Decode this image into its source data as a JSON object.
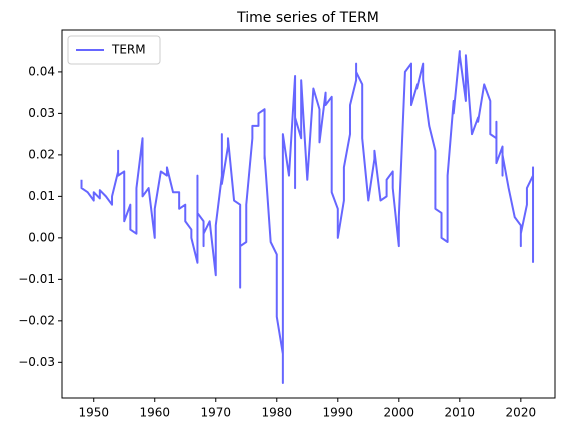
{
  "chart_data": {
    "type": "line",
    "title": "Time series of TERM",
    "x": [
      1948,
      1948,
      1949,
      1950,
      1950,
      1951,
      1951,
      1952,
      1953,
      1953,
      1954,
      1954,
      1954,
      1955,
      1955,
      1956,
      1956,
      1957,
      1957,
      1958,
      1958,
      1959,
      1960,
      1960,
      1961,
      1962,
      1962,
      1963,
      1964,
      1964,
      1965,
      1965,
      1966,
      1966,
      1967,
      1967,
      1967,
      1968,
      1968,
      1968,
      1969,
      1970,
      1970,
      1971,
      1971,
      1971,
      1972,
      1972,
      1973,
      1974,
      1974,
      1974,
      1975,
      1975,
      1976,
      1976,
      1977,
      1977,
      1978,
      1978,
      1978,
      1979,
      1980,
      1980,
      1981,
      1981,
      1981,
      1981,
      1982,
      1983,
      1983,
      1983,
      1984,
      1984,
      1985,
      1986,
      1987,
      1987,
      1988,
      1988,
      1989,
      1989,
      1990,
      1990,
      1991,
      1991,
      1992,
      1992,
      1993,
      1993,
      1993,
      1994,
      1994,
      1995,
      1996,
      1996,
      1997,
      1998,
      1998,
      1999,
      1999,
      2000,
      2000,
      2001,
      2002,
      2002,
      2003,
      2003,
      2004,
      2004,
      2004,
      2005,
      2006,
      2006,
      2007,
      2007,
      2008,
      2008,
      2009,
      2009,
      2010,
      2010,
      2011,
      2011,
      2012,
      2013,
      2013,
      2014,
      2015,
      2015,
      2016,
      2016,
      2016,
      2017,
      2017,
      2017,
      2018,
      2019,
      2020,
      2020,
      2020,
      2021,
      2021,
      2022,
      2022,
      2022,
      2022
    ],
    "series": [
      {
        "name": "TERM",
        "color": "#6666ff",
        "values": [
          0.014,
          0.012,
          0.011,
          0.009,
          0.011,
          0.0095,
          0.0115,
          0.01,
          0.008,
          0.01,
          0.016,
          0.021,
          0.015,
          0.016,
          0.004,
          0.008,
          0.002,
          0.001,
          0.012,
          0.024,
          0.01,
          0.012,
          0.0,
          0.007,
          0.016,
          0.015,
          0.017,
          0.011,
          0.011,
          0.007,
          0.008,
          0.004,
          0.002,
          0.0,
          -0.006,
          0.015,
          0.006,
          0.004,
          -0.002,
          0.001,
          0.004,
          -0.009,
          0.003,
          0.015,
          0.025,
          0.013,
          0.022,
          0.024,
          0.009,
          0.008,
          -0.012,
          -0.002,
          -0.001,
          0.008,
          0.024,
          0.027,
          0.027,
          0.03,
          0.031,
          0.019,
          0.02,
          -0.001,
          -0.004,
          -0.019,
          -0.028,
          -0.035,
          -0.017,
          0.025,
          0.015,
          0.039,
          0.012,
          0.029,
          0.024,
          0.038,
          0.014,
          0.036,
          0.031,
          0.023,
          0.035,
          0.032,
          0.034,
          0.011,
          0.007,
          0.0,
          0.009,
          0.017,
          0.025,
          0.032,
          0.038,
          0.042,
          0.04,
          0.037,
          0.024,
          0.009,
          0.019,
          0.021,
          0.009,
          0.01,
          0.014,
          0.016,
          0.012,
          -0.002,
          0.005,
          0.04,
          0.042,
          0.032,
          0.037,
          0.036,
          0.042,
          0.04,
          0.038,
          0.027,
          0.021,
          0.007,
          0.006,
          0.0,
          -0.001,
          0.015,
          0.033,
          0.03,
          0.045,
          0.044,
          0.033,
          0.044,
          0.025,
          0.029,
          0.028,
          0.037,
          0.033,
          0.025,
          0.024,
          0.028,
          0.018,
          0.022,
          0.015,
          0.02,
          0.012,
          0.005,
          0.003,
          -0.002,
          0.001,
          0.008,
          0.012,
          0.015,
          0.013,
          0.017,
          -0.006
        ]
      }
    ],
    "xlim": [
      1944.8,
      2025.6
    ],
    "xticks": [
      1950,
      1960,
      1970,
      1980,
      1990,
      2000,
      2010,
      2020
    ],
    "ylim": [
      -0.0386,
      0.0501
    ],
    "yticks": [
      {
        "value": -0.03,
        "label": "−0.03"
      },
      {
        "value": -0.02,
        "label": "−0.02"
      },
      {
        "value": -0.01,
        "label": "−0.01"
      },
      {
        "value": 0,
        "label": "0.00"
      },
      0.01,
      0.02,
      0.03,
      0.04
    ],
    "legend": "upper left"
  }
}
